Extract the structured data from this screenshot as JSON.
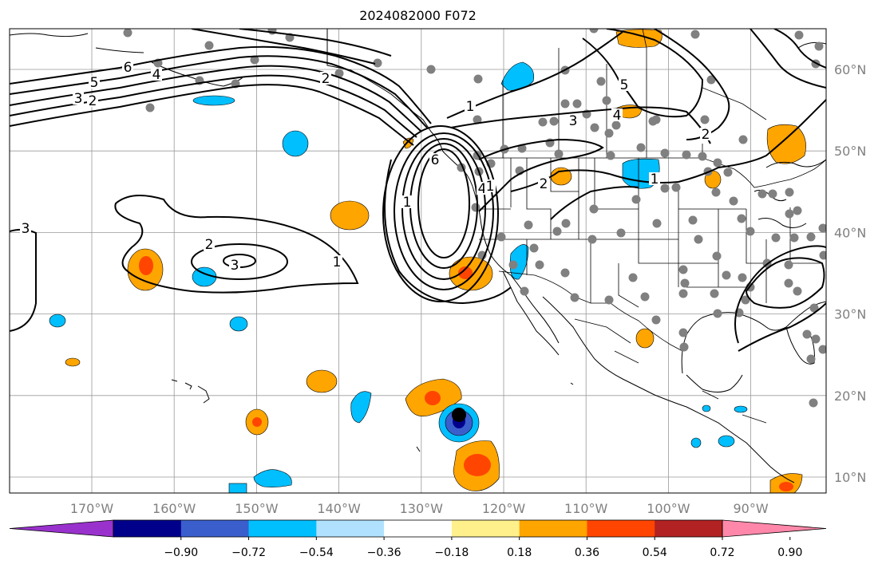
{
  "title": "2024082000 F072",
  "map": {
    "lat_labels": [
      {
        "lat": 60,
        "text": "60°N"
      },
      {
        "lat": 50,
        "text": "50°N"
      },
      {
        "lat": 40,
        "text": "40°N"
      },
      {
        "lat": 30,
        "text": "30°N"
      },
      {
        "lat": 20,
        "text": "20°N"
      },
      {
        "lat": 10,
        "text": "10°N"
      }
    ],
    "lon_labels": [
      {
        "lon": -170,
        "text": "170°W"
      },
      {
        "lon": -160,
        "text": "160°W"
      },
      {
        "lon": -150,
        "text": "150°W"
      },
      {
        "lon": -140,
        "text": "140°W"
      },
      {
        "lon": -130,
        "text": "130°W"
      },
      {
        "lon": -120,
        "text": "120°W"
      },
      {
        "lon": -110,
        "text": "110°W"
      },
      {
        "lon": -100,
        "text": "100°W"
      },
      {
        "lon": -90,
        "text": "90°W"
      }
    ],
    "colorbar": {
      "colors": [
        "#9932cc",
        "#00008b",
        "#3a5fcd",
        "#00bfff",
        "#b0e2ff",
        "#ffffff",
        "#fff08c",
        "#ffa500",
        "#ff4500",
        "#b22222",
        "#ff88aa"
      ],
      "ticks": [
        "−0.90",
        "−0.72",
        "−0.54",
        "−0.36",
        "−0.18",
        "0.18",
        "0.36",
        "0.54",
        "0.72",
        "0.90"
      ]
    },
    "contour_labels": [
      "1",
      "3",
      "2",
      "6",
      "4",
      "5",
      "3",
      "2",
      "1",
      "3",
      "2",
      "1",
      "6",
      "4",
      "1",
      "3",
      "4",
      "5",
      "1",
      "2",
      "1",
      "2"
    ]
  }
}
